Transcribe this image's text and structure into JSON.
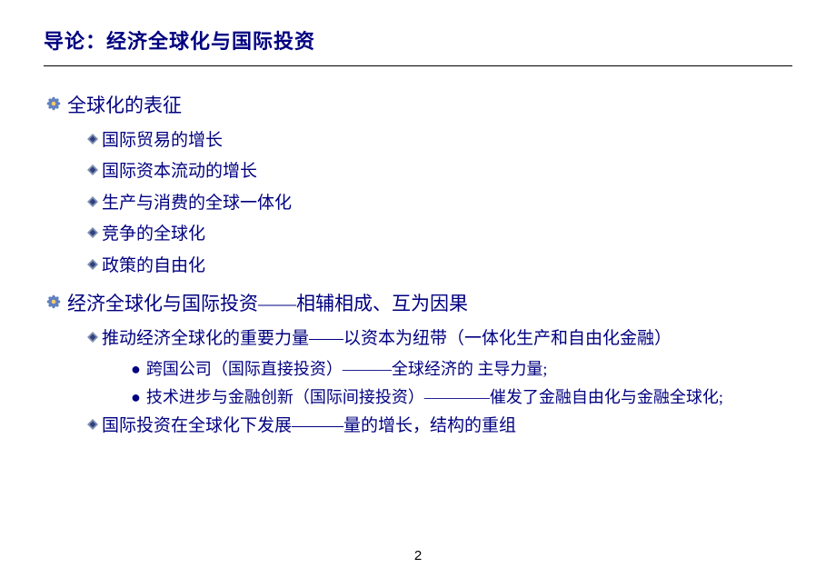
{
  "title": "导论：经济全球化与国际投资",
  "bullet_colors": {
    "flower_color": "#6080c0",
    "flower_center": "#ffcc66",
    "diamond_outer": "#8090b0",
    "diamond_inner": "#304080",
    "dot_color": "#000080"
  },
  "text_color": "#000080",
  "font_sizes": {
    "title": 22,
    "level1": 21,
    "level2": 19,
    "level3": 18
  },
  "sections": [
    {
      "text": "全球化的表征",
      "children": [
        {
          "text": "国际贸易的增长"
        },
        {
          "text": "国际资本流动的增长"
        },
        {
          "text": "生产与消费的全球一体化"
        },
        {
          "text": "竞争的全球化"
        },
        {
          "text": "政策的自由化"
        }
      ]
    },
    {
      "text": "经济全球化与国际投资——相辅相成、互为因果",
      "children": [
        {
          "text": "推动经济全球化的重要力量——以资本为纽带（一体化生产和自由化金融）",
          "children": [
            {
              "text": "跨国公司（国际直接投资）———全球经济的 主导力量;"
            },
            {
              "text": "技术进步与金融创新（国际间接投资）————催发了金融自由化与金融全球化;"
            }
          ]
        },
        {
          "text": "国际投资在全球化下发展———量的增长，结构的重组"
        }
      ]
    }
  ],
  "page_number": "2"
}
